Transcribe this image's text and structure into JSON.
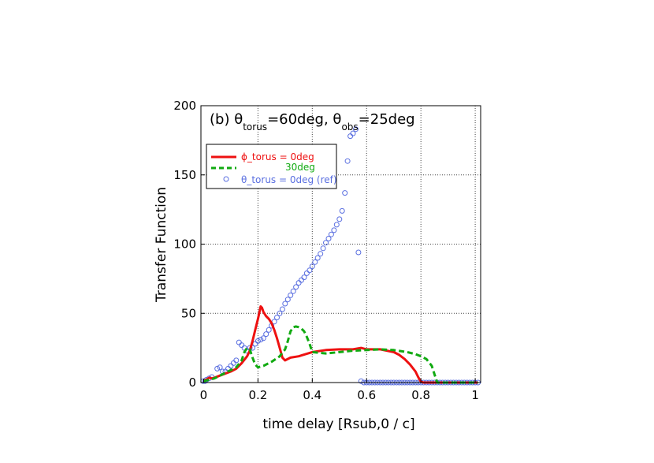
{
  "chart_data": {
    "type": "line",
    "title_parts": [
      "(b) θ",
      "torus",
      "=60deg, θ",
      "obs",
      "=25deg"
    ],
    "xlabel": "time delay [Rsub,0 / c]",
    "ylabel": "Transfer Function",
    "xlim": [
      -0.01,
      1.02
    ],
    "ylim": [
      0,
      200
    ],
    "xticks": [
      "0",
      "0.2",
      "0.4",
      "0.6",
      "0.8",
      "1"
    ],
    "yticks": [
      "0",
      "50",
      "100",
      "150",
      "200"
    ],
    "grid": true,
    "legend_position": "upper-left",
    "series": [
      {
        "name": "ϕ_torus = 0deg",
        "color": "#ee1111",
        "style": "solid",
        "x": [
          0.0,
          0.01,
          0.02,
          0.03,
          0.04,
          0.06,
          0.08,
          0.1,
          0.12,
          0.14,
          0.16,
          0.17,
          0.18,
          0.19,
          0.2,
          0.21,
          0.215,
          0.22,
          0.23,
          0.24,
          0.25,
          0.26,
          0.27,
          0.28,
          0.29,
          0.3,
          0.32,
          0.35,
          0.4,
          0.45,
          0.5,
          0.55,
          0.58,
          0.6,
          0.65,
          0.7,
          0.72,
          0.74,
          0.76,
          0.78,
          0.79,
          0.8,
          0.81,
          1.01
        ],
        "y": [
          1.5,
          2.0,
          3.5,
          3.0,
          3.5,
          5.0,
          6.5,
          8.0,
          10.0,
          14.0,
          19.0,
          23.0,
          30.0,
          38.0,
          46.0,
          55.0,
          54.0,
          51.0,
          48.0,
          46.0,
          43.0,
          38.0,
          32.0,
          25.0,
          18.0,
          16.0,
          18.0,
          19.0,
          22.0,
          23.5,
          24.0,
          24.0,
          25.0,
          24.0,
          24.0,
          22.0,
          20.0,
          17.0,
          13.0,
          8.0,
          4.0,
          0.5,
          0.0,
          0.0
        ]
      },
      {
        "name": "30deg",
        "color": "#11aa11",
        "style": "dashed",
        "x": [
          0.0,
          0.02,
          0.04,
          0.06,
          0.08,
          0.1,
          0.12,
          0.14,
          0.15,
          0.16,
          0.17,
          0.18,
          0.19,
          0.2,
          0.22,
          0.25,
          0.28,
          0.3,
          0.31,
          0.32,
          0.33,
          0.34,
          0.35,
          0.36,
          0.37,
          0.38,
          0.39,
          0.4,
          0.45,
          0.5,
          0.55,
          0.6,
          0.65,
          0.7,
          0.75,
          0.78,
          0.8,
          0.82,
          0.84,
          0.85,
          0.86,
          1.01
        ],
        "y": [
          1.0,
          2.0,
          3.0,
          5.0,
          7.0,
          9.0,
          11.0,
          16.0,
          22.0,
          25.0,
          24.0,
          18.0,
          13.0,
          11.0,
          12.0,
          15.0,
          19.0,
          24.0,
          30.0,
          37.0,
          40.0,
          40.5,
          40.0,
          39.0,
          37.0,
          33.0,
          28.0,
          22.0,
          21.0,
          22.0,
          23.0,
          23.5,
          24.0,
          23.5,
          22.0,
          20.5,
          19.0,
          17.0,
          12.0,
          6.0,
          0.0,
          0.0
        ]
      },
      {
        "name": "θ_torus = 0deg (ref)",
        "color": "#5a6fe0",
        "style": "markers",
        "x": [
          -0.002,
          0.005,
          0.01,
          0.02,
          0.03,
          0.05,
          0.06,
          0.07,
          0.08,
          0.09,
          0.1,
          0.11,
          0.12,
          0.13,
          0.14,
          0.15,
          0.16,
          0.17,
          0.18,
          0.19,
          0.2,
          0.21,
          0.22,
          0.23,
          0.24,
          0.25,
          0.26,
          0.27,
          0.28,
          0.29,
          0.3,
          0.31,
          0.32,
          0.33,
          0.34,
          0.35,
          0.36,
          0.37,
          0.38,
          0.39,
          0.4,
          0.41,
          0.42,
          0.43,
          0.44,
          0.45,
          0.46,
          0.47,
          0.48,
          0.49,
          0.5,
          0.51,
          0.52,
          0.53,
          0.54,
          0.55,
          0.56,
          0.57,
          0.58,
          0.59,
          0.6,
          0.61,
          0.62,
          0.63,
          0.64,
          0.65,
          0.66,
          0.67,
          0.68,
          0.69,
          0.7,
          0.71,
          0.72,
          0.73,
          0.74,
          0.75,
          0.76,
          0.77,
          0.78,
          0.79,
          0.8,
          0.81,
          0.82,
          0.83,
          0.84,
          0.85,
          0.86,
          0.87,
          0.88,
          0.89,
          0.9,
          0.91,
          0.92,
          0.93,
          0.94,
          0.95,
          0.96,
          0.97,
          0.98,
          0.99,
          1.0,
          1.01
        ],
        "y": [
          1,
          1,
          2,
          3,
          4,
          10,
          11,
          8,
          8,
          10,
          12,
          14,
          16,
          29,
          27,
          25,
          23,
          25,
          25,
          28,
          30,
          31,
          32,
          35,
          38,
          41,
          44,
          47,
          50,
          53,
          57,
          60,
          63,
          66,
          69,
          72,
          74,
          76,
          79,
          81,
          84,
          87,
          90,
          93,
          97,
          101,
          104,
          107,
          110,
          114,
          118,
          124,
          137,
          160,
          178,
          180,
          183,
          94,
          1,
          0,
          0,
          0,
          0,
          0,
          0,
          0,
          0,
          0,
          0,
          0,
          0,
          0,
          0,
          0,
          0,
          0,
          0,
          0,
          0,
          0,
          0,
          0,
          0,
          0,
          0,
          0,
          0,
          0,
          0,
          0,
          0,
          0,
          0,
          0,
          0,
          0,
          0,
          0,
          0,
          0,
          0,
          0
        ]
      }
    ]
  }
}
